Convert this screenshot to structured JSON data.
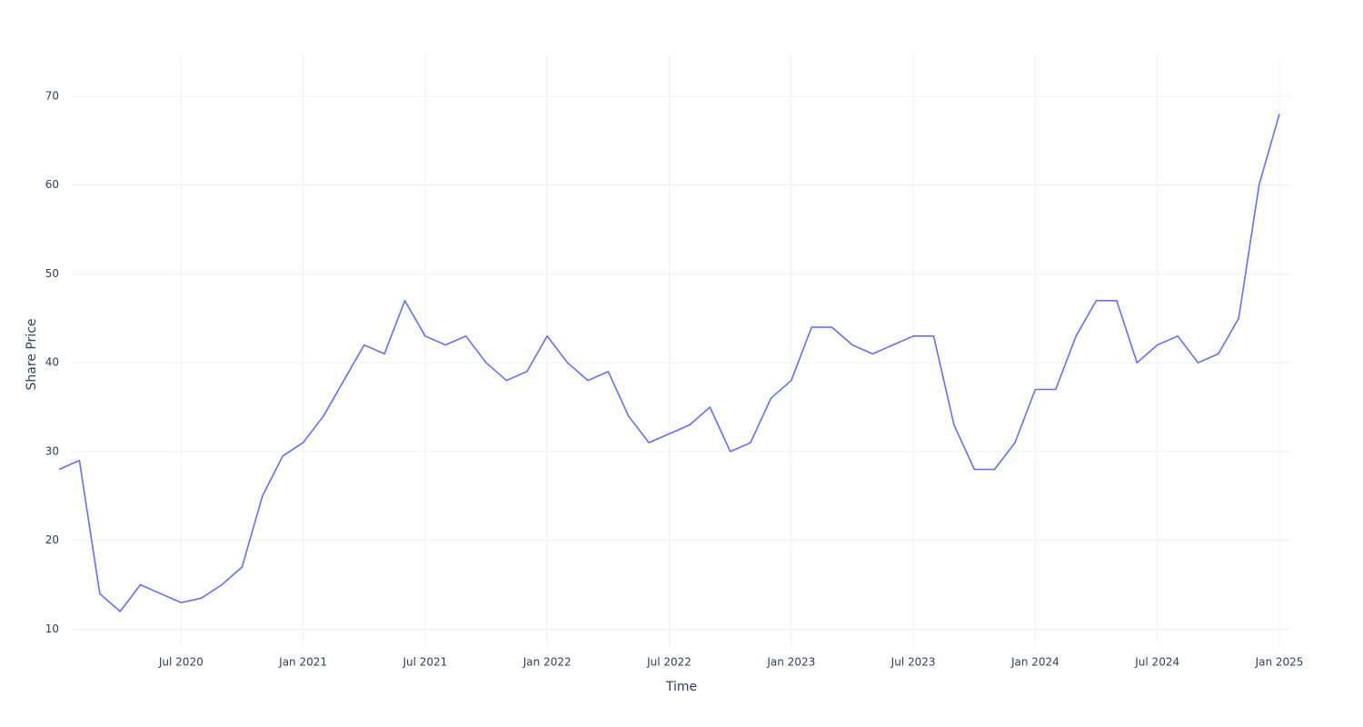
{
  "chart_data": {
    "type": "line",
    "x_label": "Time",
    "y_label": "Share Price",
    "x": [
      "2020-01",
      "2020-02",
      "2020-03",
      "2020-04",
      "2020-05",
      "2020-06",
      "2020-07",
      "2020-08",
      "2020-09",
      "2020-10",
      "2020-11",
      "2020-12",
      "2021-01",
      "2021-02",
      "2021-03",
      "2021-04",
      "2021-05",
      "2021-06",
      "2021-07",
      "2021-08",
      "2021-09",
      "2021-10",
      "2021-11",
      "2021-12",
      "2022-01",
      "2022-02",
      "2022-03",
      "2022-04",
      "2022-05",
      "2022-06",
      "2022-07",
      "2022-08",
      "2022-09",
      "2022-10",
      "2022-11",
      "2022-12",
      "2023-01",
      "2023-02",
      "2023-03",
      "2023-04",
      "2023-05",
      "2023-06",
      "2023-07",
      "2023-08",
      "2023-09",
      "2023-10",
      "2023-11",
      "2023-12",
      "2024-01",
      "2024-02",
      "2024-03",
      "2024-04",
      "2024-05",
      "2024-06",
      "2024-07",
      "2024-08",
      "2024-09",
      "2024-10",
      "2024-11",
      "2024-12",
      "2025-01"
    ],
    "series": [
      {
        "name": "Share Price",
        "color": "#636efa",
        "values": [
          28,
          29,
          14,
          12,
          15,
          14,
          13,
          13.5,
          15,
          17,
          25,
          29.5,
          31,
          34,
          38,
          42,
          41,
          47,
          43,
          42,
          43,
          40,
          38,
          39,
          43,
          40,
          38,
          39,
          34,
          31,
          32,
          33,
          35,
          30,
          31,
          36,
          38,
          44,
          44,
          42,
          41,
          42,
          43,
          43,
          33,
          28,
          28,
          31,
          37,
          37,
          43,
          47,
          47,
          40,
          42,
          43,
          40,
          41,
          45,
          60,
          68
        ]
      }
    ],
    "xlim": [
      "2020-01",
      "2025-01"
    ],
    "xticks": [
      {
        "value": "2020-07",
        "label": "Jul 2020"
      },
      {
        "value": "2021-01",
        "label": "Jan 2021"
      },
      {
        "value": "2021-07",
        "label": "Jul 2021"
      },
      {
        "value": "2022-01",
        "label": "Jan 2022"
      },
      {
        "value": "2022-07",
        "label": "Jul 2022"
      },
      {
        "value": "2023-01",
        "label": "Jan 2023"
      },
      {
        "value": "2023-07",
        "label": "Jul 2023"
      },
      {
        "value": "2024-01",
        "label": "Jan 2024"
      },
      {
        "value": "2024-07",
        "label": "Jul 2024"
      },
      {
        "value": "2025-01",
        "label": "Jan 2025"
      }
    ],
    "ylim": [
      8.2,
      74.7
    ],
    "yticks": [
      10,
      20,
      30,
      40,
      50,
      60,
      70
    ],
    "grid": true
  }
}
